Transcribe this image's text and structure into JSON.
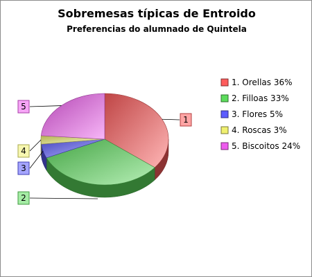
{
  "chart_data": {
    "type": "pie",
    "style": "3d",
    "title": "Sobremesas típicas de Entroido",
    "subtitle": "Preferencias do alumnado de Quintela",
    "legend_position": "right",
    "slices": [
      {
        "id": "1",
        "label": "Orellas",
        "value": 36,
        "legend": "1. Orellas 36%",
        "color": "#ff5c5c"
      },
      {
        "id": "2",
        "label": "Filloas",
        "value": 33,
        "legend": "2. Filloas 33%",
        "color": "#5cdc5c"
      },
      {
        "id": "3",
        "label": "Flores",
        "value": 5,
        "legend": "3. Flores 5%",
        "color": "#5c5cff"
      },
      {
        "id": "4",
        "label": "Roscas",
        "value": 3,
        "legend": "4. Roscas 3%",
        "color": "#f0f070"
      },
      {
        "id": "5",
        "label": "Biscoitos",
        "value": 24,
        "legend": "5. Biscoitos 24%",
        "color": "#ee5cee"
      }
    ]
  }
}
